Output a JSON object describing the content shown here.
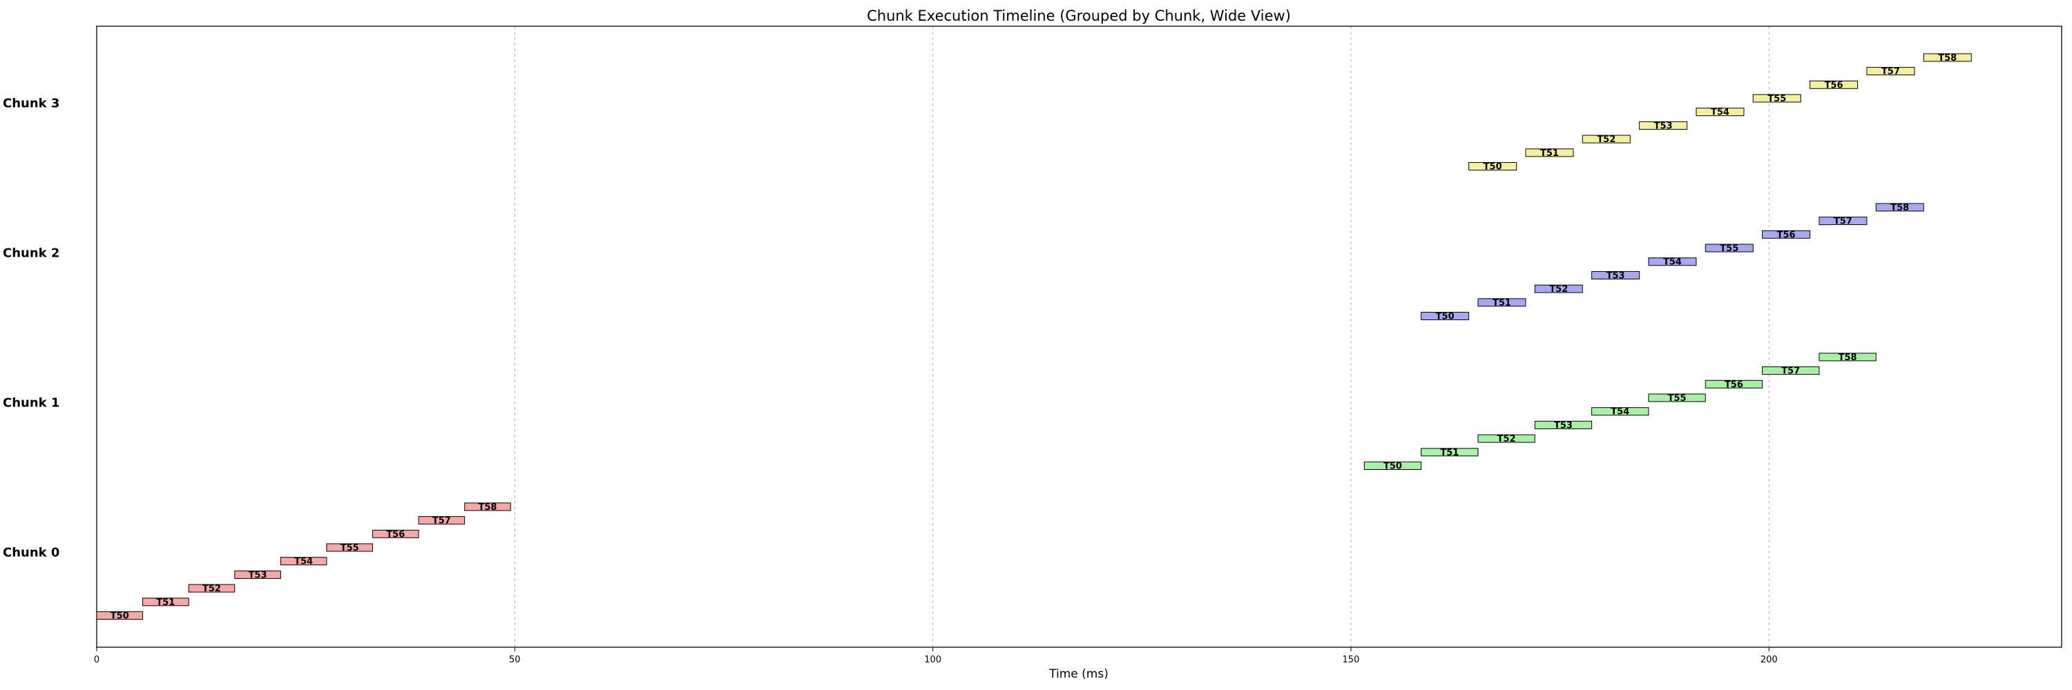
{
  "chart_data": {
    "type": "timeline",
    "title": "Chunk Execution Timeline (Grouped by Chunk, Wide View)",
    "xlabel": "Time (ms)",
    "ylabel": "",
    "xlim": [
      0,
      235
    ],
    "xticks": [
      0,
      50,
      100,
      150,
      200
    ],
    "grid": "vertical dashed at x ticks",
    "chunks": [
      {
        "name": "Chunk 0",
        "color": "#f4a8a8",
        "tasks": [
          {
            "label": "T50",
            "start": 0.0,
            "end": 5.5
          },
          {
            "label": "T51",
            "start": 5.5,
            "end": 11.0
          },
          {
            "label": "T52",
            "start": 11.0,
            "end": 16.5
          },
          {
            "label": "T53",
            "start": 16.5,
            "end": 22.0
          },
          {
            "label": "T54",
            "start": 22.0,
            "end": 27.5
          },
          {
            "label": "T55",
            "start": 27.5,
            "end": 33.0
          },
          {
            "label": "T56",
            "start": 33.0,
            "end": 38.5
          },
          {
            "label": "T57",
            "start": 38.5,
            "end": 44.0
          },
          {
            "label": "T58",
            "start": 44.0,
            "end": 49.5
          }
        ]
      },
      {
        "name": "Chunk 1",
        "color": "#a8f0a8",
        "tasks": [
          {
            "label": "T50",
            "start": 151.6,
            "end": 158.4
          },
          {
            "label": "T51",
            "start": 158.4,
            "end": 165.2
          },
          {
            "label": "T52",
            "start": 165.2,
            "end": 172.0
          },
          {
            "label": "T53",
            "start": 172.0,
            "end": 178.8
          },
          {
            "label": "T54",
            "start": 178.8,
            "end": 185.6
          },
          {
            "label": "T55",
            "start": 185.6,
            "end": 192.4
          },
          {
            "label": "T56",
            "start": 192.4,
            "end": 199.2
          },
          {
            "label": "T57",
            "start": 199.2,
            "end": 206.0
          },
          {
            "label": "T58",
            "start": 206.0,
            "end": 212.8
          }
        ]
      },
      {
        "name": "Chunk 2",
        "color": "#a8a8f0",
        "tasks": [
          {
            "label": "T50",
            "start": 158.4,
            "end": 164.1
          },
          {
            "label": "T51",
            "start": 165.2,
            "end": 170.9
          },
          {
            "label": "T52",
            "start": 172.0,
            "end": 177.7
          },
          {
            "label": "T53",
            "start": 178.8,
            "end": 184.5
          },
          {
            "label": "T54",
            "start": 185.6,
            "end": 191.3
          },
          {
            "label": "T55",
            "start": 192.4,
            "end": 198.1
          },
          {
            "label": "T56",
            "start": 199.2,
            "end": 204.9
          },
          {
            "label": "T57",
            "start": 206.0,
            "end": 211.7
          },
          {
            "label": "T58",
            "start": 212.8,
            "end": 218.5
          }
        ]
      },
      {
        "name": "Chunk 3",
        "color": "#f4f0a0",
        "tasks": [
          {
            "label": "T50",
            "start": 164.1,
            "end": 169.8
          },
          {
            "label": "T51",
            "start": 170.9,
            "end": 176.6
          },
          {
            "label": "T52",
            "start": 177.7,
            "end": 183.4
          },
          {
            "label": "T53",
            "start": 184.5,
            "end": 190.2
          },
          {
            "label": "T54",
            "start": 191.3,
            "end": 197.0
          },
          {
            "label": "T55",
            "start": 198.1,
            "end": 203.8
          },
          {
            "label": "T56",
            "start": 204.9,
            "end": 210.6
          },
          {
            "label": "T57",
            "start": 211.7,
            "end": 217.4
          },
          {
            "label": "T58",
            "start": 218.5,
            "end": 224.2
          }
        ]
      }
    ]
  }
}
